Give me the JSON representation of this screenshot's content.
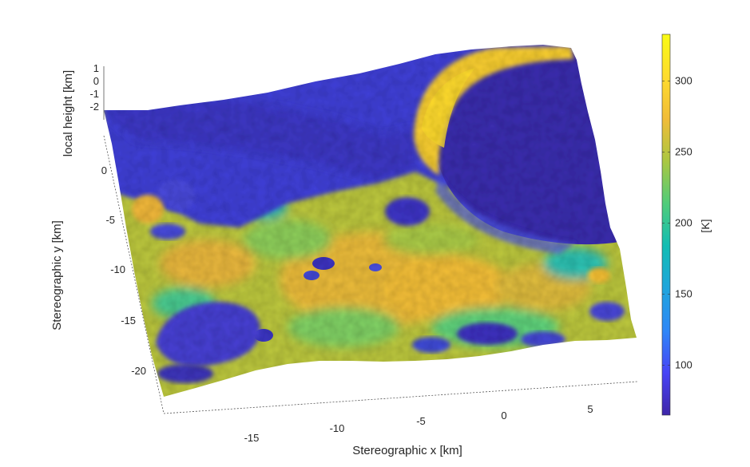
{
  "chart_data": {
    "type": "surface",
    "xlabel": "Stereographic x [km]",
    "ylabel": "Stereographic y [km]",
    "zlabel": "local height [km]",
    "x_ticks": [
      -15,
      -10,
      -5,
      0,
      5
    ],
    "y_ticks": [
      0,
      -5,
      -10,
      -15,
      -20
    ],
    "z_ticks": [
      1,
      0,
      -1,
      -2
    ],
    "xlim": [
      -20,
      8
    ],
    "ylim": [
      -23,
      2
    ],
    "zlim": [
      -2.5,
      1.2
    ],
    "colorbar": {
      "label": "[K]",
      "ticks": [
        100,
        150,
        200,
        250,
        300
      ],
      "range": [
        65,
        333
      ],
      "colormap": "parula",
      "colors": [
        "#3e26a8",
        "#4743f6",
        "#2e87f7",
        "#1fa5dc",
        "#12bdb3",
        "#50cc7a",
        "#aac741",
        "#f1bc38",
        "#fedc2e",
        "#f9fb15"
      ]
    },
    "regions": [
      {
        "feature": "large crater floor (east)",
        "temperature_K": 85
      },
      {
        "feature": "sunlit crater rim (north-east)",
        "temperature_K": 300
      },
      {
        "feature": "northern lowland plain",
        "temperature_K": 90
      },
      {
        "feature": "southern highland terrain",
        "temperature_K": 240
      },
      {
        "feature": "south-west crater floor",
        "temperature_K": 110
      }
    ]
  }
}
